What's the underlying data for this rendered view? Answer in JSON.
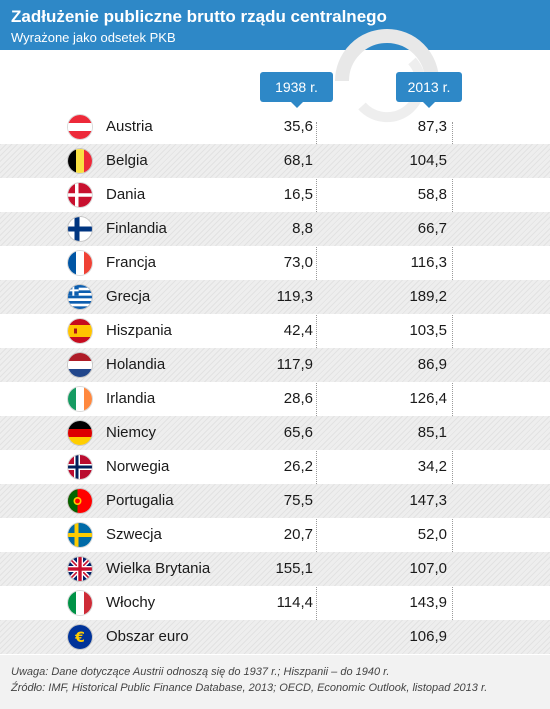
{
  "header": {
    "title": "Zadłużenie publiczne brutto rządu centralnego",
    "subtitle": "Wyrażone jako odsetek PKB"
  },
  "chart_data": {
    "type": "table",
    "title": "Zadłużenie publiczne brutto rządu centralnego",
    "subtitle": "Wyrażone jako odsetek PKB",
    "columns": [
      "1938 r.",
      "2013 r."
    ],
    "rows": [
      {
        "country": "Austria",
        "flag": "austria-flag-icon",
        "v1938": "35,6",
        "v2013": "87,3"
      },
      {
        "country": "Belgia",
        "flag": "belgium-flag-icon",
        "v1938": "68,1",
        "v2013": "104,5"
      },
      {
        "country": "Dania",
        "flag": "denmark-flag-icon",
        "v1938": "16,5",
        "v2013": "58,8"
      },
      {
        "country": "Finlandia",
        "flag": "finland-flag-icon",
        "v1938": "8,8",
        "v2013": "66,7"
      },
      {
        "country": "Francja",
        "flag": "france-flag-icon",
        "v1938": "73,0",
        "v2013": "116,3"
      },
      {
        "country": "Grecja",
        "flag": "greece-flag-icon",
        "v1938": "119,3",
        "v2013": "189,2"
      },
      {
        "country": "Hiszpania",
        "flag": "spain-flag-icon",
        "v1938": "42,4",
        "v2013": "103,5"
      },
      {
        "country": "Holandia",
        "flag": "netherlands-flag-icon",
        "v1938": "117,9",
        "v2013": "86,9"
      },
      {
        "country": "Irlandia",
        "flag": "ireland-flag-icon",
        "v1938": "28,6",
        "v2013": "126,4"
      },
      {
        "country": "Niemcy",
        "flag": "germany-flag-icon",
        "v1938": "65,6",
        "v2013": "85,1"
      },
      {
        "country": "Norwegia",
        "flag": "norway-flag-icon",
        "v1938": "26,2",
        "v2013": "34,2"
      },
      {
        "country": "Portugalia",
        "flag": "portugal-flag-icon",
        "v1938": "75,5",
        "v2013": "147,3"
      },
      {
        "country": "Szwecja",
        "flag": "sweden-flag-icon",
        "v1938": "20,7",
        "v2013": "52,0"
      },
      {
        "country": "Wielka Brytania",
        "flag": "uk-flag-icon",
        "v1938": "155,1",
        "v2013": "107,0"
      },
      {
        "country": "Włochy",
        "flag": "italy-flag-icon",
        "v1938": "114,4",
        "v2013": "143,9"
      },
      {
        "country": "Obszar euro",
        "flag": "euro-icon",
        "v1938": "",
        "v2013": "106,9"
      }
    ]
  },
  "footer": {
    "note": "Uwaga: Dane dotyczące Austrii odnoszą się do 1937 r.; Hiszpanii – do 1940 r.",
    "source": "Źródło: IMF, Historical Public Finance Database, 2013; OECD, Economic Outlook, listopad 2013 r."
  },
  "colors": {
    "accent": "#2e88c7",
    "stripe": "#eeeeee"
  }
}
